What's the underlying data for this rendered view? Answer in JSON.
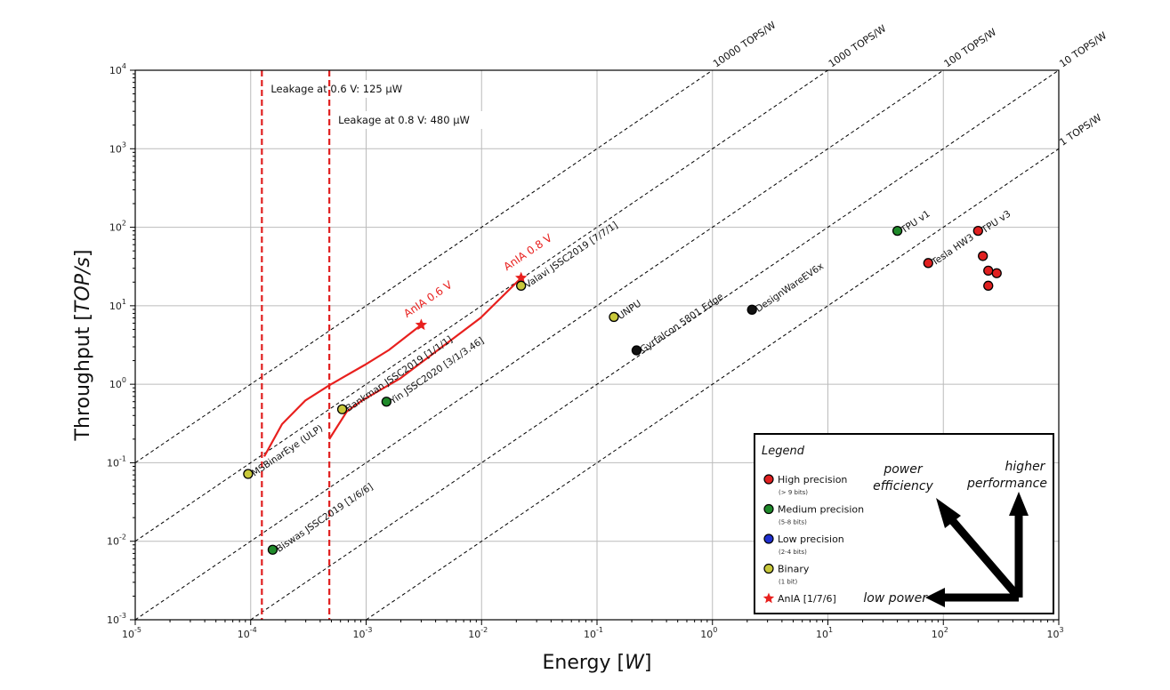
{
  "chart_data": {
    "type": "scatter",
    "xlabel": "Energy [W]",
    "xlabel_parts": [
      "Energy [",
      "W",
      "]"
    ],
    "ylabel_parts": [
      "Throughput [",
      "TOP/s",
      "]"
    ],
    "xscale": "log",
    "yscale": "log",
    "xlim": [
      1e-05,
      1000.0
    ],
    "ylim": [
      0.001,
      10000.0
    ],
    "x_tick_exponents": [
      -5,
      -4,
      -3,
      -2,
      -1,
      0,
      1,
      2,
      3
    ],
    "y_tick_exponents": [
      -3,
      -2,
      -1,
      0,
      1,
      2,
      3,
      4
    ],
    "tick_base": "10",
    "grid": true,
    "colors": {
      "high": "#e02020",
      "medium": "#1f8a2a",
      "low": "#1f2fd0",
      "binary": "#c8c83a",
      "other": "#111111",
      "anIA": "#e8201e",
      "leakage": "#e02020"
    },
    "efficiency_lines": [
      {
        "tops_per_w": 10000,
        "label": "10000 TOPS/W"
      },
      {
        "tops_per_w": 1000,
        "label": "1000 TOPS/W"
      },
      {
        "tops_per_w": 100,
        "label": "100 TOPS/W"
      },
      {
        "tops_per_w": 10,
        "label": "10 TOPS/W"
      },
      {
        "tops_per_w": 1,
        "label": "1 TOPS/W"
      }
    ],
    "leakage_lines": [
      {
        "energy": 0.000125,
        "label": "Leakage at 0.6 V: 125 μW"
      },
      {
        "energy": 0.00048,
        "label": "Leakage at 0.8 V: 480 μW"
      }
    ],
    "points": [
      {
        "name": "MSBinarEye (ULP)",
        "x": 9.5e-05,
        "y": 0.072,
        "class": "binary"
      },
      {
        "name": "Biswas JSSC2019 [1/6/6]",
        "x": 0.000155,
        "y": 0.0078,
        "class": "medium"
      },
      {
        "name": "Bankman JSSC2019 [1/1/1]",
        "x": 0.00062,
        "y": 0.48,
        "class": "binary"
      },
      {
        "name": "Yin JSSC2020 [3/1/3.46]",
        "x": 0.0015,
        "y": 0.6,
        "class": "medium"
      },
      {
        "name": "Valavi JSSC2019 [7/7/1]",
        "x": 0.022,
        "y": 18,
        "class": "binary"
      },
      {
        "name": "UNPU",
        "x": 0.14,
        "y": 7.2,
        "class": "binary"
      },
      {
        "name": "Gyrfalcon 5801 Edge",
        "x": 0.22,
        "y": 2.7,
        "class": "other"
      },
      {
        "name": "DesignWareEV6x",
        "x": 2.2,
        "y": 8.9,
        "class": "other"
      },
      {
        "name": "TPU v1",
        "x": 40,
        "y": 90,
        "class": "medium"
      },
      {
        "name": "Tesla HW3",
        "x": 74,
        "y": 35,
        "class": "high"
      },
      {
        "name": "TPU v3",
        "x": 200,
        "y": 90,
        "class": "high"
      },
      {
        "name": "",
        "x": 220,
        "y": 43,
        "class": "high"
      },
      {
        "name": "",
        "x": 245,
        "y": 28,
        "class": "high"
      },
      {
        "name": "",
        "x": 290,
        "y": 26,
        "class": "high"
      },
      {
        "name": "",
        "x": 245,
        "y": 18,
        "class": "high"
      }
    ],
    "anIA_curves": [
      {
        "label": "AnIA 0.6 V",
        "x": [
          0.000131,
          0.000187,
          0.000297,
          0.00048,
          0.00097,
          0.00158,
          0.003
        ],
        "y": [
          0.12,
          0.31,
          0.62,
          0.97,
          1.76,
          2.74,
          5.7
        ]
      },
      {
        "label": "AnIA 0.8 V",
        "x": [
          0.00048,
          0.00068,
          0.00092,
          0.00198,
          0.0098,
          0.022
        ],
        "y": [
          0.2,
          0.45,
          0.62,
          1.19,
          7.0,
          22.6
        ]
      }
    ],
    "legend": {
      "title": "Legend",
      "placement": "bottom-right",
      "items": [
        {
          "label": "High precision",
          "sub": "(> 9 bits)",
          "class": "high",
          "marker": "circle"
        },
        {
          "label": "Medium precision",
          "sub": "(5-8 bits)",
          "class": "medium",
          "marker": "circle"
        },
        {
          "label": "Low precision",
          "sub": "(2-4 bits)",
          "class": "low",
          "marker": "circle"
        },
        {
          "label": "Binary",
          "sub": "(1 bit)",
          "class": "binary",
          "marker": "circle"
        },
        {
          "label": "AnIA [1/7/6]",
          "sub": "",
          "class": "anIA",
          "marker": "star"
        }
      ],
      "arrows": {
        "efficiency": [
          "power",
          "efficiency"
        ],
        "performance": [
          "higher",
          "performance"
        ],
        "low_power": "low power"
      }
    }
  }
}
